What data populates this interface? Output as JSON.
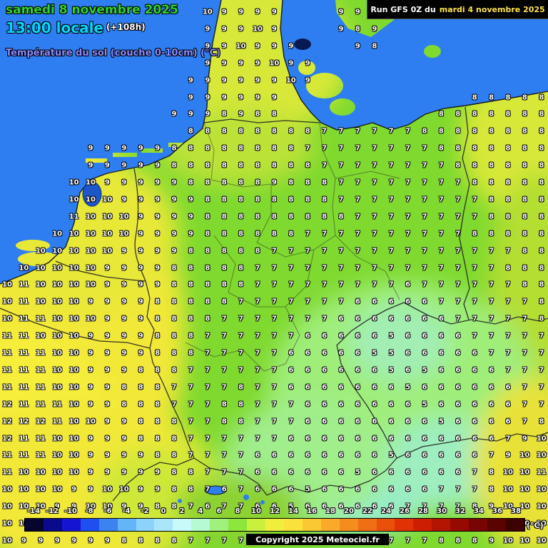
{
  "header": {
    "date_line": "samedi 8 novembre 2025",
    "time_line": "13:00 locale",
    "offset": "(+108h)",
    "subtitle": "Température du sol (couche 0-10cm) (°C)"
  },
  "run_box": {
    "prefix": "Run GFS 0Z du",
    "date": "mardi 4 novembre 2025"
  },
  "copyright": "Copyright 2025 Meteociel.fr",
  "scale": {
    "unit": "(°C)",
    "values": [
      -14,
      -12,
      -10,
      -8,
      -6,
      -4,
      -2,
      0,
      2,
      4,
      6,
      8,
      10,
      12,
      14,
      16,
      18,
      20,
      22,
      24,
      26,
      28,
      30,
      32,
      34,
      36,
      38
    ],
    "colors": [
      "#05052d",
      "#0a0a8c",
      "#1414d2",
      "#1e50f0",
      "#3c82f0",
      "#64b4fa",
      "#8cd2fa",
      "#aae6fa",
      "#c8fafa",
      "#b4fad2",
      "#a0f07d",
      "#8ce63c",
      "#c8f03c",
      "#f0ee3c",
      "#fae13c",
      "#fac832",
      "#faaa28",
      "#f58c1e",
      "#f06e14",
      "#eb500a",
      "#e13205",
      "#cd1e03",
      "#b41402",
      "#960a01",
      "#780501",
      "#5a0301",
      "#3c0200"
    ]
  },
  "map": {
    "sea_color": "#2e7ef2",
    "land_base_color": "#7fd92e",
    "temperature_grid": [
      [
        null,
        null,
        null,
        null,
        null,
        null,
        null,
        null,
        null,
        null,
        null,
        null,
        10,
        9,
        9,
        9,
        9,
        null,
        null,
        null,
        9,
        9,
        8,
        null,
        null,
        null,
        null,
        null,
        null,
        null,
        null,
        null,
        null
      ],
      [
        null,
        null,
        null,
        null,
        null,
        null,
        null,
        null,
        null,
        null,
        null,
        null,
        9,
        9,
        9,
        10,
        9,
        null,
        null,
        null,
        9,
        8,
        9,
        null,
        null,
        null,
        null,
        null,
        null,
        null,
        null,
        null,
        null
      ],
      [
        null,
        null,
        null,
        null,
        null,
        null,
        null,
        null,
        null,
        null,
        null,
        null,
        9,
        9,
        10,
        9,
        9,
        9,
        null,
        null,
        null,
        9,
        8,
        null,
        null,
        null,
        null,
        null,
        null,
        null,
        null,
        null,
        null
      ],
      [
        null,
        null,
        null,
        null,
        null,
        null,
        null,
        null,
        null,
        null,
        null,
        null,
        9,
        9,
        9,
        9,
        10,
        9,
        9,
        null,
        null,
        null,
        null,
        null,
        null,
        null,
        null,
        null,
        null,
        null,
        null,
        null,
        null
      ],
      [
        null,
        null,
        null,
        null,
        null,
        null,
        null,
        null,
        null,
        null,
        null,
        9,
        9,
        9,
        9,
        9,
        9,
        10,
        9,
        null,
        null,
        null,
        null,
        null,
        null,
        null,
        null,
        null,
        null,
        null,
        null,
        null,
        null
      ],
      [
        null,
        null,
        null,
        null,
        null,
        null,
        null,
        null,
        null,
        null,
        null,
        9,
        9,
        9,
        9,
        9,
        9,
        null,
        null,
        null,
        null,
        null,
        null,
        null,
        null,
        null,
        null,
        null,
        8,
        8,
        8,
        8,
        8
      ],
      [
        null,
        null,
        null,
        null,
        null,
        null,
        null,
        null,
        null,
        null,
        9,
        9,
        9,
        8,
        9,
        8,
        8,
        null,
        null,
        null,
        null,
        null,
        null,
        null,
        null,
        null,
        8,
        8,
        8,
        8,
        8,
        8,
        8
      ],
      [
        null,
        null,
        null,
        null,
        null,
        null,
        null,
        null,
        null,
        null,
        null,
        8,
        8,
        8,
        8,
        8,
        8,
        8,
        8,
        7,
        7,
        7,
        7,
        7,
        7,
        8,
        8,
        8,
        8,
        8,
        8,
        8,
        8
      ],
      [
        null,
        null,
        null,
        null,
        null,
        9,
        9,
        9,
        9,
        9,
        8,
        8,
        8,
        8,
        8,
        8,
        8,
        8,
        7,
        7,
        7,
        7,
        7,
        7,
        7,
        7,
        8,
        8,
        8,
        8,
        8,
        8,
        8
      ],
      [
        null,
        null,
        null,
        null,
        null,
        9,
        9,
        9,
        9,
        9,
        8,
        8,
        8,
        8,
        8,
        8,
        8,
        8,
        8,
        7,
        7,
        7,
        7,
        7,
        7,
        7,
        7,
        8,
        8,
        8,
        8,
        8,
        8
      ],
      [
        null,
        null,
        null,
        null,
        10,
        10,
        9,
        9,
        9,
        9,
        9,
        8,
        8,
        8,
        8,
        8,
        9,
        8,
        8,
        8,
        7,
        7,
        7,
        7,
        7,
        7,
        7,
        7,
        8,
        8,
        8,
        8,
        8
      ],
      [
        null,
        null,
        null,
        null,
        10,
        10,
        10,
        9,
        9,
        9,
        9,
        9,
        8,
        8,
        8,
        8,
        8,
        8,
        8,
        8,
        7,
        7,
        7,
        7,
        7,
        7,
        7,
        7,
        7,
        8,
        8,
        8,
        8
      ],
      [
        null,
        null,
        null,
        null,
        11,
        10,
        10,
        10,
        9,
        9,
        9,
        9,
        8,
        8,
        8,
        8,
        8,
        8,
        8,
        8,
        8,
        7,
        7,
        7,
        7,
        7,
        7,
        7,
        7,
        8,
        8,
        8,
        8
      ],
      [
        null,
        null,
        null,
        10,
        10,
        10,
        10,
        10,
        9,
        9,
        9,
        9,
        8,
        8,
        8,
        8,
        8,
        8,
        7,
        7,
        7,
        7,
        7,
        7,
        7,
        7,
        7,
        7,
        8,
        8,
        8,
        8,
        8
      ],
      [
        null,
        null,
        10,
        10,
        10,
        10,
        10,
        9,
        9,
        9,
        9,
        8,
        8,
        8,
        8,
        8,
        7,
        7,
        7,
        7,
        7,
        7,
        7,
        7,
        7,
        7,
        7,
        7,
        7,
        7,
        7,
        8,
        8
      ],
      [
        null,
        10,
        10,
        10,
        10,
        10,
        9,
        9,
        9,
        9,
        8,
        8,
        8,
        8,
        8,
        7,
        7,
        7,
        7,
        7,
        7,
        7,
        7,
        7,
        7,
        7,
        7,
        7,
        7,
        7,
        8,
        8,
        8
      ],
      [
        10,
        11,
        10,
        10,
        10,
        10,
        9,
        9,
        9,
        9,
        8,
        8,
        8,
        8,
        8,
        7,
        7,
        7,
        7,
        7,
        7,
        7,
        7,
        7,
        6,
        7,
        7,
        7,
        7,
        7,
        7,
        8,
        8
      ],
      [
        10,
        11,
        10,
        10,
        10,
        9,
        9,
        9,
        9,
        8,
        8,
        8,
        8,
        8,
        7,
        7,
        7,
        7,
        7,
        7,
        7,
        6,
        6,
        6,
        6,
        6,
        7,
        7,
        7,
        7,
        7,
        7,
        8
      ],
      [
        10,
        11,
        11,
        10,
        10,
        10,
        9,
        9,
        9,
        8,
        8,
        8,
        8,
        7,
        7,
        7,
        7,
        7,
        7,
        7,
        6,
        6,
        6,
        6,
        6,
        6,
        6,
        7,
        7,
        7,
        7,
        7,
        8
      ],
      [
        11,
        11,
        10,
        10,
        10,
        9,
        9,
        9,
        9,
        8,
        8,
        8,
        7,
        7,
        7,
        7,
        7,
        7,
        6,
        6,
        6,
        6,
        6,
        5,
        6,
        6,
        6,
        6,
        7,
        7,
        7,
        7,
        7
      ],
      [
        11,
        11,
        11,
        10,
        10,
        9,
        9,
        9,
        9,
        8,
        8,
        8,
        7,
        7,
        7,
        7,
        7,
        6,
        6,
        6,
        6,
        6,
        5,
        5,
        6,
        6,
        6,
        6,
        6,
        7,
        7,
        7,
        7
      ],
      [
        11,
        11,
        11,
        10,
        10,
        9,
        9,
        9,
        8,
        8,
        8,
        7,
        7,
        7,
        7,
        7,
        7,
        6,
        6,
        6,
        6,
        6,
        6,
        5,
        6,
        5,
        6,
        6,
        6,
        6,
        7,
        7,
        7
      ],
      [
        11,
        11,
        11,
        10,
        10,
        9,
        9,
        8,
        8,
        8,
        7,
        7,
        7,
        7,
        8,
        7,
        7,
        6,
        6,
        6,
        6,
        6,
        6,
        6,
        5,
        6,
        6,
        6,
        6,
        6,
        6,
        7,
        7
      ],
      [
        12,
        11,
        11,
        11,
        10,
        9,
        9,
        8,
        8,
        8,
        7,
        7,
        7,
        8,
        8,
        7,
        7,
        7,
        6,
        6,
        6,
        6,
        6,
        6,
        6,
        5,
        6,
        6,
        6,
        6,
        6,
        7,
        7
      ],
      [
        12,
        12,
        12,
        11,
        10,
        10,
        9,
        9,
        8,
        8,
        8,
        7,
        7,
        8,
        8,
        7,
        7,
        7,
        6,
        6,
        6,
        6,
        6,
        6,
        6,
        6,
        5,
        6,
        6,
        6,
        6,
        7,
        8
      ],
      [
        12,
        11,
        11,
        10,
        10,
        9,
        9,
        9,
        8,
        8,
        8,
        7,
        7,
        7,
        7,
        7,
        7,
        6,
        6,
        6,
        6,
        6,
        6,
        6,
        6,
        6,
        6,
        6,
        6,
        6,
        7,
        9,
        10
      ],
      [
        11,
        11,
        11,
        10,
        10,
        9,
        9,
        9,
        9,
        8,
        8,
        7,
        7,
        7,
        7,
        6,
        6,
        6,
        6,
        6,
        6,
        6,
        6,
        5,
        6,
        6,
        6,
        6,
        6,
        7,
        9,
        10,
        10
      ],
      [
        11,
        10,
        10,
        10,
        10,
        9,
        9,
        9,
        9,
        9,
        8,
        8,
        7,
        7,
        7,
        6,
        6,
        6,
        6,
        6,
        6,
        5,
        6,
        6,
        6,
        6,
        6,
        6,
        7,
        8,
        10,
        10,
        11
      ],
      [
        10,
        10,
        10,
        10,
        9,
        9,
        10,
        10,
        9,
        9,
        8,
        8,
        7,
        6,
        7,
        6,
        6,
        6,
        5,
        6,
        6,
        6,
        6,
        6,
        6,
        6,
        7,
        7,
        7,
        8,
        10,
        10,
        10
      ],
      [
        10,
        10,
        10,
        9,
        9,
        10,
        10,
        9,
        9,
        8,
        8,
        7,
        6,
        7,
        7,
        6,
        6,
        5,
        6,
        6,
        6,
        6,
        6,
        6,
        7,
        7,
        7,
        7,
        8,
        9,
        10,
        10,
        10
      ],
      [
        10,
        10,
        9,
        9,
        9,
        10,
        9,
        9,
        8,
        8,
        8,
        7,
        7,
        7,
        7,
        6,
        6,
        6,
        6,
        6,
        6,
        6,
        7,
        7,
        7,
        7,
        7,
        8,
        8,
        9,
        10,
        10,
        10
      ],
      [
        10,
        9,
        9,
        9,
        9,
        9,
        9,
        8,
        8,
        8,
        8,
        7,
        7,
        7,
        7,
        7,
        6,
        6,
        6,
        6,
        6,
        7,
        7,
        7,
        7,
        7,
        8,
        8,
        8,
        9,
        10,
        10,
        10
      ]
    ]
  }
}
